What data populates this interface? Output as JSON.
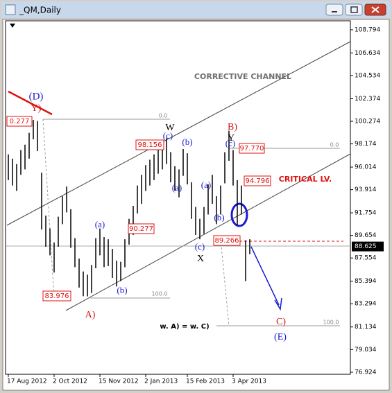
{
  "window_title": "_QM,Daily",
  "chart_data": {
    "type": "range",
    "categories": [
      "17 Aug 2012",
      null,
      null,
      null,
      null,
      null,
      null,
      null,
      null,
      null,
      null,
      "2 Oct 2012",
      null,
      null,
      null,
      null,
      null,
      null,
      null,
      null,
      null,
      null,
      "15 Nov 2012",
      null,
      null,
      null,
      null,
      null,
      null,
      null,
      null,
      null,
      null,
      "2 Jan 2013",
      null,
      null,
      null,
      null,
      null,
      null,
      null,
      null,
      null,
      "15 Feb 2013",
      null,
      null,
      null,
      null,
      null,
      null,
      null,
      null,
      null,
      null,
      "3 Apr 2013",
      null,
      null,
      null,
      null,
      null,
      null,
      null,
      null,
      null,
      null,
      null,
      null,
      null,
      null,
      null,
      null,
      null,
      null,
      null,
      null,
      null,
      null,
      null,
      null,
      null,
      null,
      null
    ],
    "high": [
      97.2,
      96.8,
      96.3,
      97.6,
      98.1,
      99.2,
      100.4,
      100.3,
      95.5,
      91.5,
      90.3,
      89.0,
      91.4,
      93.3,
      94.2,
      92.1,
      89.4,
      87.5,
      86.3,
      86.0,
      86.9,
      89.4,
      90.3,
      89.5,
      89.3,
      88.4,
      87.3,
      87.2,
      89.3,
      91.2,
      92.4,
      94.3,
      95.3,
      96.2,
      96.7,
      97.2,
      97.6,
      98.2,
      98.7,
      97.4,
      96.1,
      95.8,
      97.7,
      97.3,
      94.6,
      92.3,
      91.2,
      92.3,
      94.4,
      95.3,
      93.3,
      94.3,
      97.4,
      99.4,
      97.6,
      94.8,
      94.3,
      89.2,
      89.3,
      null,
      null,
      null,
      null,
      null,
      null,
      null,
      null,
      null,
      null,
      null,
      null,
      null,
      null,
      null,
      null,
      null,
      null,
      null,
      null,
      null,
      null,
      null
    ],
    "low": [
      94.8,
      94.3,
      93.8,
      95.3,
      95.8,
      96.8,
      98.6,
      97.5,
      90.2,
      88.6,
      87.8,
      86.2,
      88.6,
      90.7,
      91.8,
      88.5,
      86.7,
      84.8,
      84.0,
      83.98,
      84.3,
      86.6,
      87.8,
      86.7,
      86.8,
      85.7,
      84.9,
      85.4,
      86.7,
      88.8,
      89.7,
      91.7,
      92.6,
      93.8,
      94.3,
      94.8,
      95.4,
      95.8,
      96.3,
      94.6,
      93.8,
      93.2,
      95.2,
      94.4,
      91.2,
      89.7,
      89.3,
      89.8,
      91.6,
      92.6,
      90.7,
      91.6,
      94.5,
      96.6,
      94.3,
      90.6,
      91.6,
      85.4,
      87.9,
      null,
      null,
      null,
      null,
      null,
      null,
      null,
      null,
      null,
      null,
      null,
      null,
      null,
      null,
      null,
      null,
      null,
      null,
      null,
      null,
      null,
      null,
      null
    ],
    "color": "#000000",
    "ylim": [
      76.73,
      109.63
    ],
    "yticks": [
      {
        "value": 108.794,
        "label": "108.794"
      },
      {
        "value": 106.634,
        "label": "106.634"
      },
      {
        "value": 104.534,
        "label": "104.534"
      },
      {
        "value": 102.374,
        "label": "102.374"
      },
      {
        "value": 100.274,
        "label": "100.274"
      },
      {
        "value": 98.174,
        "label": "98.174"
      },
      {
        "value": 96.014,
        "label": "96.014"
      },
      {
        "value": 93.914,
        "label": "93.914"
      },
      {
        "value": 91.754,
        "label": "91.754"
      },
      {
        "value": 89.654,
        "label": "89.654"
      },
      {
        "value": 87.554,
        "label": "87.554"
      },
      {
        "value": 85.394,
        "label": "85.394"
      },
      {
        "value": 83.294,
        "label": "83.294"
      },
      {
        "value": 81.134,
        "label": "81.134"
      },
      {
        "value": 79.034,
        "label": "79.034"
      },
      {
        "value": 76.924,
        "label": "76.924"
      }
    ],
    "current_price": {
      "value": 88.625,
      "label": "88.625"
    },
    "annotations": [
      {
        "text": "(D)",
        "color": "#1a1ad0"
      },
      {
        "text": "Y)",
        "color": "#d01010"
      },
      {
        "text": "W",
        "color": "#000000"
      },
      {
        "text": "(c)",
        "color": "#1a1ad0"
      },
      {
        "text": "(b)",
        "color": "#1a1ad0"
      },
      {
        "text": "(a)",
        "color": "#1a1ad0"
      },
      {
        "text": "(a)",
        "color": "#1a1ad0"
      },
      {
        "text": "(b)",
        "color": "#1a1ad0"
      },
      {
        "text": "A)",
        "color": "#d01010"
      },
      {
        "text": "B)",
        "color": "#d01010"
      },
      {
        "text": "Y",
        "color": "#000000"
      },
      {
        "text": "(c)",
        "color": "#1a1ad0"
      },
      {
        "text": "(a)",
        "color": "#1a1ad0"
      },
      {
        "text": "(b)",
        "color": "#1a1ad0"
      },
      {
        "text": "(c)",
        "color": "#1a1ad0"
      },
      {
        "text": "X",
        "color": "#000000"
      },
      {
        "text": "C)",
        "color": "#d01010"
      },
      {
        "text": "(E)",
        "color": "#1a1ad0"
      },
      {
        "text": "CORRECTIVE CHANNEL",
        "color": "#707070"
      },
      {
        "text": "CRITICAL LV.",
        "color": "#e01010"
      },
      {
        "text": "w. A) = w. C)",
        "color": "#000000"
      }
    ],
    "fib_labels": [
      "0.0",
      "100.0",
      "0.0",
      "100.0"
    ],
    "price_tags": [
      "0.277",
      "98.156",
      "97.770",
      "94.796",
      "90.277",
      "89.266",
      "83.976"
    ]
  }
}
